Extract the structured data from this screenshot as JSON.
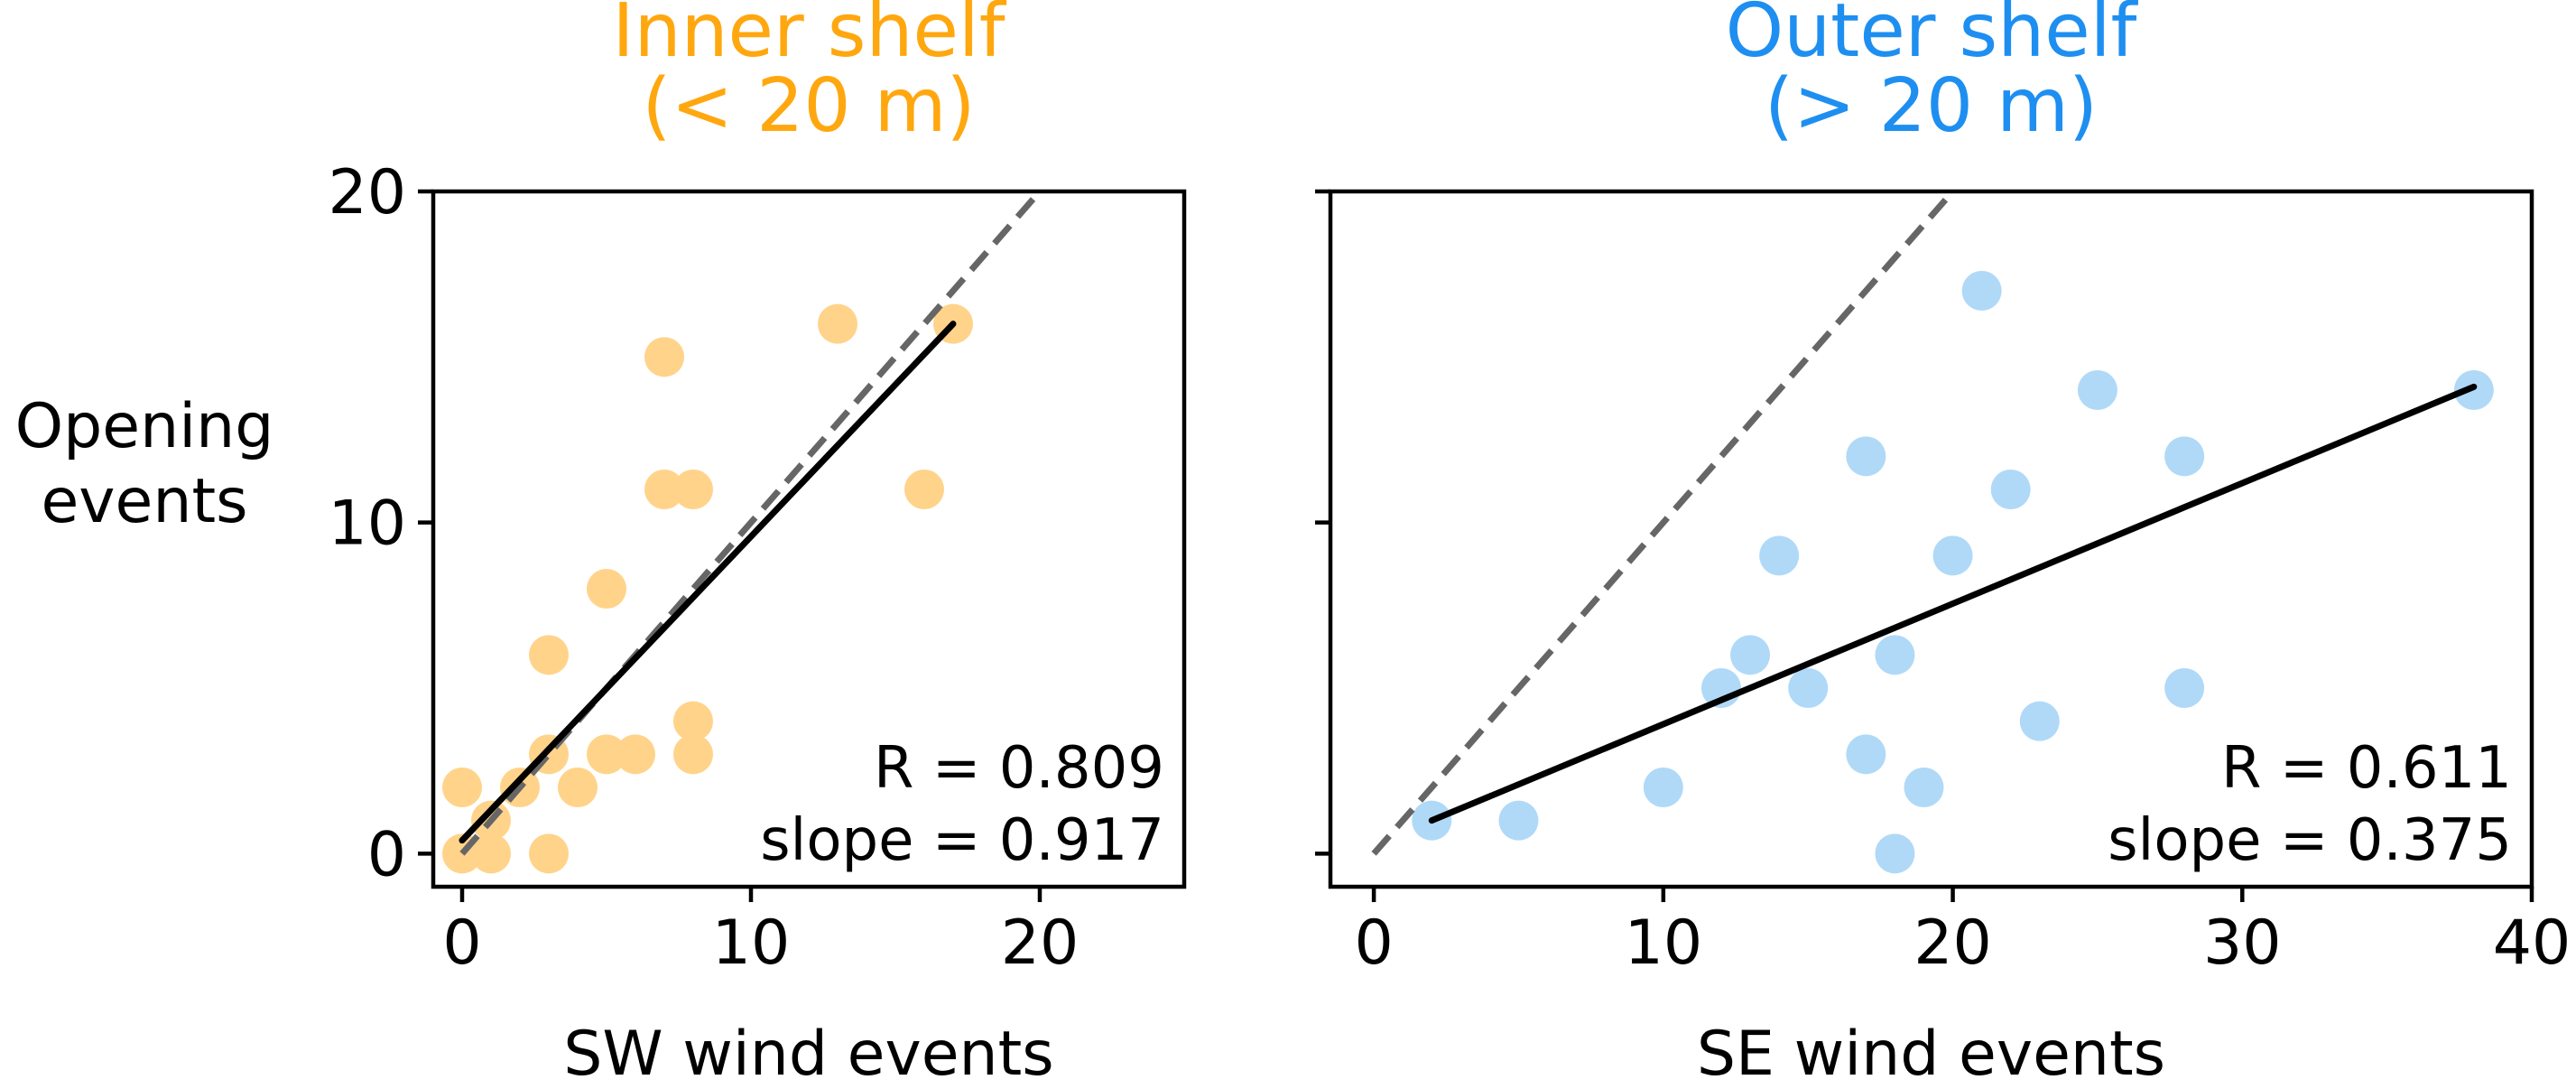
{
  "y_axis_label": [
    "Opening",
    "events"
  ],
  "chart_data": [
    {
      "type": "scatter",
      "title": [
        "Inner shelf",
        "(< 20 m)"
      ],
      "title_color": "#FFA70F",
      "point_color": "#FFD38A",
      "xlabel": "SW wind events",
      "ylabel": "Opening events",
      "xlim": [
        -1,
        25
      ],
      "ylim": [
        -1,
        20
      ],
      "xticks": [
        0,
        10,
        20
      ],
      "yticks": [
        0,
        10,
        20
      ],
      "show_y_tick_labels": true,
      "grid": false,
      "points": [
        {
          "x": 0,
          "y": 0
        },
        {
          "x": 0,
          "y": 2
        },
        {
          "x": 1,
          "y": 0
        },
        {
          "x": 1,
          "y": 1
        },
        {
          "x": 2,
          "y": 2
        },
        {
          "x": 3,
          "y": 3
        },
        {
          "x": 3,
          "y": 0
        },
        {
          "x": 3,
          "y": 6
        },
        {
          "x": 4,
          "y": 2
        },
        {
          "x": 5,
          "y": 3
        },
        {
          "x": 5,
          "y": 8
        },
        {
          "x": 6,
          "y": 3
        },
        {
          "x": 7,
          "y": 15
        },
        {
          "x": 7,
          "y": 11
        },
        {
          "x": 8,
          "y": 11
        },
        {
          "x": 8,
          "y": 4
        },
        {
          "x": 8,
          "y": 3
        },
        {
          "x": 13,
          "y": 16
        },
        {
          "x": 16,
          "y": 11
        },
        {
          "x": 17,
          "y": 16
        }
      ],
      "fit_line": {
        "x": [
          0,
          17
        ],
        "y": [
          0.4,
          16.0
        ],
        "color": "#000000"
      },
      "reference_line": {
        "x": [
          0,
          20
        ],
        "y": [
          0,
          20
        ],
        "style": "dashed",
        "color": "#666666"
      },
      "r_text": "R = 0.809",
      "slope_text": "slope = 0.917"
    },
    {
      "type": "scatter",
      "title": [
        "Outer shelf",
        "(> 20 m)"
      ],
      "title_color": "#1E8FF0",
      "point_color": "#B0D9F8",
      "xlabel": "SE wind events",
      "ylabel": "Opening events",
      "xlim": [
        -1.5,
        40
      ],
      "ylim": [
        -1,
        20
      ],
      "xticks": [
        0,
        10,
        20,
        30,
        40
      ],
      "yticks": [
        0,
        10,
        20
      ],
      "show_y_tick_labels": false,
      "grid": false,
      "points": [
        {
          "x": 2,
          "y": 1
        },
        {
          "x": 5,
          "y": 1
        },
        {
          "x": 10,
          "y": 2
        },
        {
          "x": 12,
          "y": 5
        },
        {
          "x": 13,
          "y": 6
        },
        {
          "x": 14,
          "y": 9
        },
        {
          "x": 15,
          "y": 5
        },
        {
          "x": 17,
          "y": 12
        },
        {
          "x": 17,
          "y": 3
        },
        {
          "x": 18,
          "y": 6
        },
        {
          "x": 18,
          "y": 0
        },
        {
          "x": 19,
          "y": 2
        },
        {
          "x": 20,
          "y": 9
        },
        {
          "x": 21,
          "y": 17
        },
        {
          "x": 22,
          "y": 11
        },
        {
          "x": 23,
          "y": 4
        },
        {
          "x": 25,
          "y": 14
        },
        {
          "x": 28,
          "y": 12
        },
        {
          "x": 28,
          "y": 5
        },
        {
          "x": 38,
          "y": 14
        }
      ],
      "fit_line": {
        "x": [
          2,
          38
        ],
        "y": [
          1.0,
          14.1
        ],
        "color": "#000000"
      },
      "reference_line": {
        "x": [
          0,
          20
        ],
        "y": [
          0,
          20
        ],
        "style": "dashed",
        "color": "#666666"
      },
      "r_text": "R = 0.611",
      "slope_text": "slope = 0.375"
    }
  ]
}
